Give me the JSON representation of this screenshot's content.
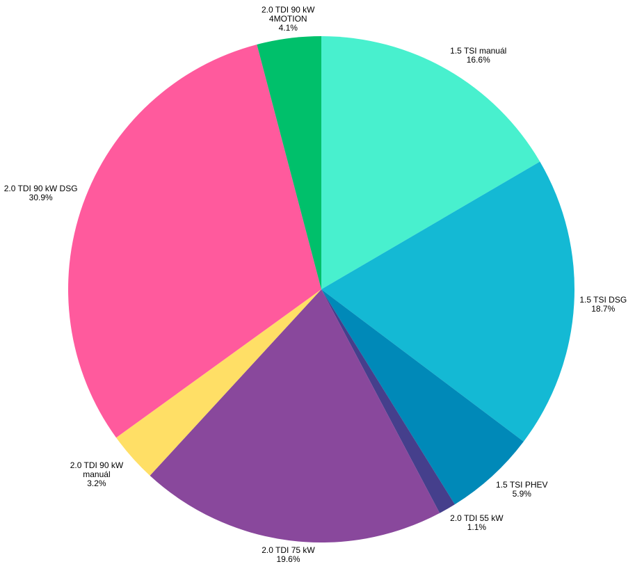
{
  "chart_data": {
    "type": "pie",
    "categories": [
      "1.5 TSI manuál",
      "1.5 TSI DSG",
      "1.5 TSI PHEV",
      "2.0 TDI 55 kW",
      "2.0 TDI 75 kW",
      "2.0 TDI 90 kW manuál",
      "2.0 TDI 90 kW DSG",
      "2.0 TDI 90 kW 4MOTION"
    ],
    "values": [
      16.6,
      18.7,
      5.9,
      1.1,
      19.6,
      3.2,
      30.9,
      4.1
    ],
    "value_labels": [
      "16.6%",
      "18.7%",
      "5.9%",
      "1.1%",
      "19.6%",
      "3.2%",
      "30.9%",
      "4.1%"
    ],
    "colors": [
      "#48f0ce",
      "#14b9d4",
      "#0089b8",
      "#453f8c",
      "#89489c",
      "#ffdf66",
      "#ff5a9d",
      "#00c06b"
    ]
  }
}
